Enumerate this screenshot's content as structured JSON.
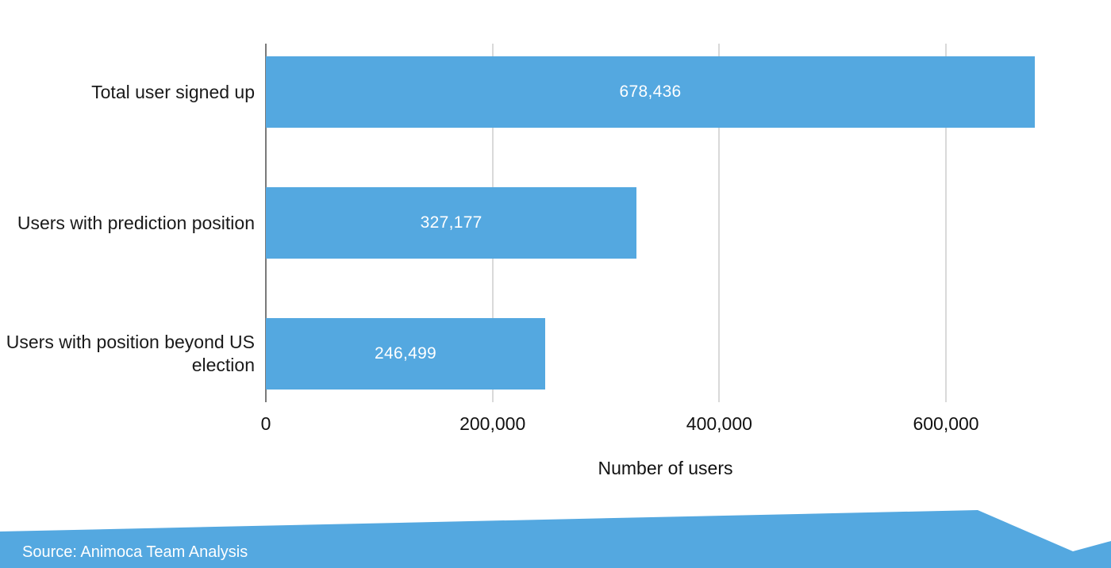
{
  "chart_data": {
    "type": "bar",
    "orientation": "horizontal",
    "categories": [
      "Total user signed up",
      "Users with prediction position",
      "Users with position beyond US election"
    ],
    "values": [
      678436,
      327177,
      246499
    ],
    "value_labels": [
      "678,436",
      "327,177",
      "246,499"
    ],
    "title": "",
    "xlabel": "Number of users",
    "ylabel": "",
    "xlim": [
      0,
      705000
    ],
    "xticks": [
      {
        "value": 0,
        "label": "0"
      },
      {
        "value": 200000,
        "label": "200,000"
      },
      {
        "value": 400000,
        "label": "400,000"
      },
      {
        "value": 600000,
        "label": "600,000"
      }
    ],
    "grid": "vertical",
    "legend": "none",
    "bar_color": "#54a8e0",
    "gridline_color": "#d9d9d9",
    "axis_line_color": "#7a7a7a",
    "value_label_color": "#ffffff"
  },
  "footer": {
    "source_label": "Source: Animoca Team Analysis",
    "banner_color": "#54a8e0"
  }
}
